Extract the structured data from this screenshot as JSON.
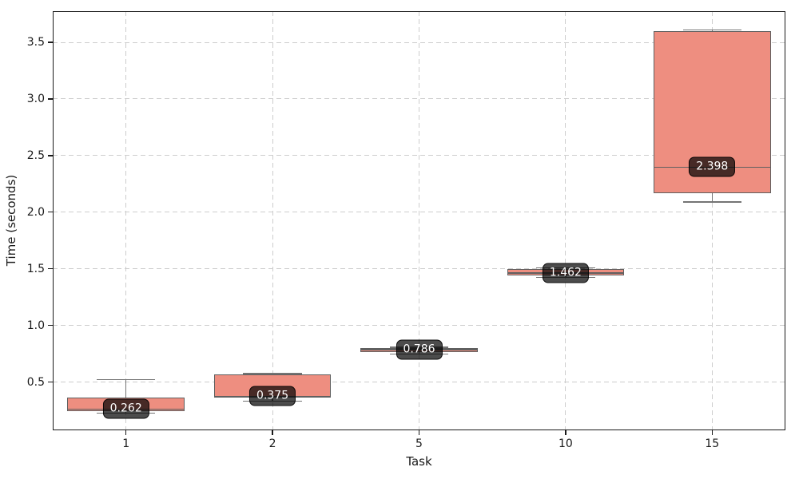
{
  "chart_data": {
    "type": "box",
    "title": "",
    "xlabel": "Task",
    "ylabel": "Time (seconds)",
    "categories": [
      "1",
      "2",
      "5",
      "10",
      "15"
    ],
    "ylim": [
      0.074,
      3.775
    ],
    "yticks": [
      0.5,
      1.0,
      1.5,
      2.0,
      2.5,
      3.0,
      3.5
    ],
    "grid": true,
    "legend": false,
    "boxes": [
      {
        "category": "1",
        "whislo": 0.225,
        "q1": 0.243,
        "med": 0.262,
        "q3": 0.36,
        "whishi": 0.52,
        "label": "0.262"
      },
      {
        "category": "2",
        "whislo": 0.33,
        "q1": 0.362,
        "med": 0.375,
        "q3": 0.565,
        "whishi": 0.575,
        "label": "0.375"
      },
      {
        "category": "5",
        "whislo": 0.748,
        "q1": 0.762,
        "med": 0.786,
        "q3": 0.8,
        "whishi": 0.808,
        "label": "0.786"
      },
      {
        "category": "10",
        "whislo": 1.425,
        "q1": 1.445,
        "med": 1.462,
        "q3": 1.5,
        "whishi": 1.51,
        "label": "1.462"
      },
      {
        "category": "15",
        "whislo": 2.09,
        "q1": 2.17,
        "med": 2.398,
        "q3": 3.6,
        "whishi": 3.61,
        "label": "2.398"
      }
    ],
    "colors": {
      "box_fill": "#ee8e80",
      "box_edge": "#5f5f5f",
      "median_line": "#606060",
      "whisker": "#747474",
      "grid": "#cdcdcd",
      "spine": "#1a1a1a",
      "tick_text": "#1a1a1a",
      "badge_bg": "rgba(0,0,0,0.70)",
      "badge_border": "rgba(0,0,0,0.85)",
      "badge_text": "#ffffff"
    }
  }
}
